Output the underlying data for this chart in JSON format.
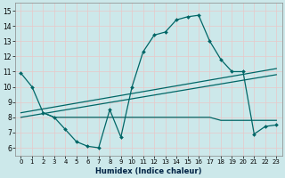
{
  "xlabel": "Humidex (Indice chaleur)",
  "xlim": [
    -0.5,
    23.5
  ],
  "ylim": [
    5.5,
    15.5
  ],
  "xticks": [
    0,
    1,
    2,
    3,
    4,
    5,
    6,
    7,
    8,
    9,
    10,
    11,
    12,
    13,
    14,
    15,
    16,
    17,
    18,
    19,
    20,
    21,
    22,
    23
  ],
  "yticks": [
    6,
    7,
    8,
    9,
    10,
    11,
    12,
    13,
    14,
    15
  ],
  "bg_color": "#cce8ea",
  "grid_color": "#e8f8f8",
  "line_color": "#006666",
  "line1_x": [
    0,
    1,
    2,
    3,
    4,
    5,
    6,
    7,
    8,
    9,
    10,
    11,
    12,
    13,
    14,
    15,
    16,
    17,
    18,
    19,
    20,
    21,
    22,
    23
  ],
  "line1_y": [
    10.9,
    10.0,
    8.3,
    8.0,
    7.2,
    6.4,
    6.1,
    6.0,
    8.5,
    6.7,
    10.0,
    12.3,
    13.4,
    13.6,
    14.4,
    14.6,
    14.7,
    13.0,
    11.8,
    11.0,
    11.0,
    6.9,
    7.4,
    7.5
  ],
  "line2_x": [
    2,
    3,
    4,
    5,
    6,
    7,
    8,
    9,
    10,
    11,
    12,
    13,
    14,
    15,
    16,
    17,
    18,
    19,
    20,
    21,
    22,
    23
  ],
  "line2_y": [
    8.3,
    8.0,
    8.0,
    8.0,
    8.0,
    8.0,
    8.0,
    8.0,
    8.0,
    8.0,
    8.0,
    8.0,
    8.0,
    8.0,
    8.0,
    8.0,
    7.8,
    7.8,
    7.8,
    7.8,
    7.8,
    7.8
  ],
  "line3_x": [
    0,
    23
  ],
  "line3_y": [
    8.0,
    10.8
  ],
  "line4_x": [
    0,
    23
  ],
  "line4_y": [
    8.3,
    11.2
  ]
}
